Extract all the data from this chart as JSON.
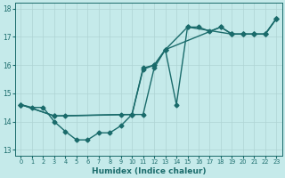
{
  "xlabel": "Humidex (Indice chaleur)",
  "background_color": "#c5eaea",
  "grid_color": "#afd4d4",
  "line_color": "#1a6b6b",
  "xlim": [
    -0.5,
    23.5
  ],
  "ylim": [
    12.8,
    18.2
  ],
  "yticks": [
    13,
    14,
    15,
    16,
    17,
    18
  ],
  "xticks": [
    0,
    1,
    2,
    3,
    4,
    5,
    6,
    7,
    8,
    9,
    10,
    11,
    12,
    13,
    14,
    15,
    16,
    17,
    18,
    19,
    20,
    21,
    22,
    23
  ],
  "line1_x": [
    0,
    1,
    2,
    3,
    4,
    5,
    6,
    7,
    8,
    9,
    10,
    11,
    12,
    13,
    14,
    15,
    16,
    17,
    18,
    19,
    20,
    21,
    22,
    23
  ],
  "line1_y": [
    14.6,
    14.5,
    14.5,
    14.0,
    13.65,
    13.35,
    13.35,
    13.6,
    13.6,
    13.85,
    14.25,
    14.25,
    15.9,
    16.55,
    14.6,
    17.35,
    17.35,
    17.2,
    17.35,
    17.1,
    17.1,
    17.1,
    17.1,
    17.65
  ],
  "line2_x": [
    0,
    3,
    4,
    10,
    11,
    12,
    13,
    18,
    19,
    20,
    21,
    22,
    23
  ],
  "line2_y": [
    14.6,
    14.2,
    14.2,
    14.25,
    15.9,
    16.0,
    16.55,
    17.35,
    17.1,
    17.1,
    17.1,
    17.1,
    17.65
  ],
  "line3_x": [
    0,
    3,
    9,
    10,
    11,
    12,
    13,
    15,
    19,
    20,
    21,
    22,
    23
  ],
  "line3_y": [
    14.6,
    14.2,
    14.25,
    14.25,
    15.85,
    16.0,
    16.55,
    17.35,
    17.1,
    17.1,
    17.1,
    17.1,
    17.65
  ],
  "marker": "D",
  "markersize": 2.5,
  "linewidth": 1.0
}
